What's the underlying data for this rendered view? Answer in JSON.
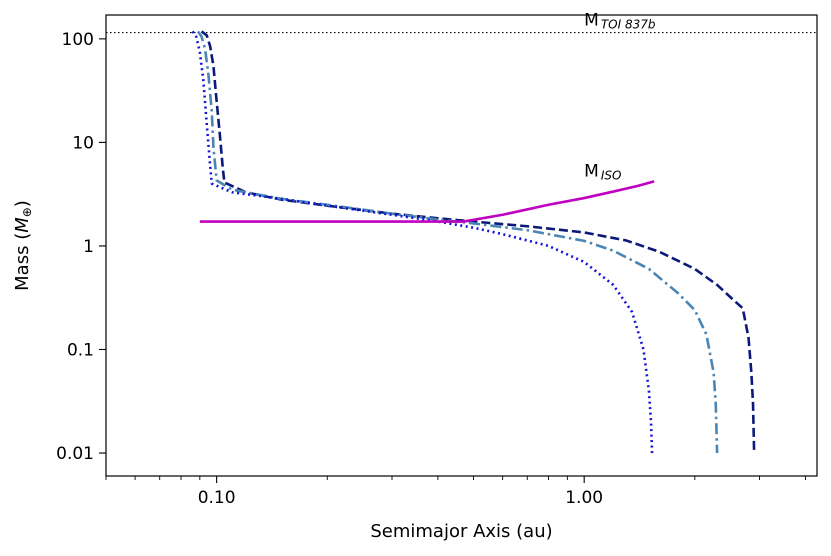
{
  "chart_data": {
    "type": "line",
    "xscale": "log",
    "yscale": "log",
    "xlabel": "Semimajor Axis (au)",
    "ylabel_main": "Mass (",
    "ylabel_symbol": "M",
    "ylabel_sub": "⊕",
    "ylabel_end": ")",
    "xlim": [
      0.05,
      4.3
    ],
    "ylim": [
      0.006,
      170
    ],
    "xticks": [
      {
        "value": 0.1,
        "label": "0.10"
      },
      {
        "value": 1.0,
        "label": "1.00"
      }
    ],
    "yticks": [
      {
        "value": 0.01,
        "label": "0.01"
      },
      {
        "value": 0.1,
        "label": "0.1"
      },
      {
        "value": 1,
        "label": "1"
      },
      {
        "value": 10,
        "label": "10"
      },
      {
        "value": 100,
        "label": "100"
      }
    ],
    "reference_lines": [
      {
        "name": "toi-837b-line",
        "y": 115,
        "x_range": [
          0.05,
          4.3
        ],
        "color": "#000000",
        "style": "dotted",
        "label_main": "M",
        "label_sub": "TOI 837b",
        "label_x": 1.0,
        "label_y": 135
      }
    ],
    "annotations": [
      {
        "name": "m-iso-label",
        "label_main": "M",
        "label_sub": "ISO",
        "x": 1.0,
        "y": 4.7
      }
    ],
    "series": [
      {
        "name": "dark-navy-dashed",
        "color": "#0b1a7a",
        "style": "dashed",
        "points": [
          [
            0.091,
            118
          ],
          [
            0.094,
            108
          ],
          [
            0.096,
            85
          ],
          [
            0.098,
            55
          ],
          [
            0.1,
            25
          ],
          [
            0.102,
            12
          ],
          [
            0.104,
            5.5
          ],
          [
            0.105,
            4.1
          ],
          [
            0.12,
            3.3
          ],
          [
            0.15,
            2.8
          ],
          [
            0.2,
            2.45
          ],
          [
            0.3,
            2.05
          ],
          [
            0.4,
            1.85
          ],
          [
            0.5,
            1.72
          ],
          [
            0.7,
            1.55
          ],
          [
            1.0,
            1.35
          ],
          [
            1.3,
            1.13
          ],
          [
            1.6,
            0.88
          ],
          [
            2.0,
            0.6
          ],
          [
            2.3,
            0.42
          ],
          [
            2.55,
            0.3
          ],
          [
            2.7,
            0.25
          ],
          [
            2.8,
            0.13
          ],
          [
            2.85,
            0.06
          ],
          [
            2.88,
            0.03
          ],
          [
            2.9,
            0.01
          ]
        ]
      },
      {
        "name": "steelblue-dashdot",
        "color": "#4a86b5",
        "style": "dashdot",
        "points": [
          [
            0.089,
            118
          ],
          [
            0.091,
            105
          ],
          [
            0.093,
            80
          ],
          [
            0.095,
            45
          ],
          [
            0.097,
            20
          ],
          [
            0.098,
            9
          ],
          [
            0.1,
            4.3
          ],
          [
            0.11,
            3.5
          ],
          [
            0.15,
            2.85
          ],
          [
            0.2,
            2.5
          ],
          [
            0.3,
            2.05
          ],
          [
            0.4,
            1.8
          ],
          [
            0.5,
            1.65
          ],
          [
            0.7,
            1.42
          ],
          [
            1.0,
            1.12
          ],
          [
            1.2,
            0.9
          ],
          [
            1.5,
            0.6
          ],
          [
            1.8,
            0.35
          ],
          [
            2.0,
            0.24
          ],
          [
            2.15,
            0.14
          ],
          [
            2.25,
            0.06
          ],
          [
            2.28,
            0.03
          ],
          [
            2.3,
            0.01
          ]
        ]
      },
      {
        "name": "blue-dotted",
        "color": "#1414d6",
        "style": "dotted",
        "points": [
          [
            0.086,
            118
          ],
          [
            0.088,
            105
          ],
          [
            0.09,
            75
          ],
          [
            0.092,
            40
          ],
          [
            0.094,
            15
          ],
          [
            0.096,
            6
          ],
          [
            0.097,
            4.0
          ],
          [
            0.11,
            3.3
          ],
          [
            0.15,
            2.85
          ],
          [
            0.2,
            2.45
          ],
          [
            0.3,
            2.0
          ],
          [
            0.4,
            1.72
          ],
          [
            0.5,
            1.5
          ],
          [
            0.6,
            1.3
          ],
          [
            0.8,
            1.0
          ],
          [
            1.0,
            0.7
          ],
          [
            1.2,
            0.42
          ],
          [
            1.35,
            0.23
          ],
          [
            1.45,
            0.1
          ],
          [
            1.5,
            0.04
          ],
          [
            1.52,
            0.02
          ],
          [
            1.53,
            0.01
          ]
        ]
      },
      {
        "name": "m-iso-line",
        "color": "#c000c0",
        "style": "solid",
        "points": [
          [
            0.09,
            1.72
          ],
          [
            0.2,
            1.72
          ],
          [
            0.35,
            1.72
          ],
          [
            0.47,
            1.72
          ],
          [
            0.6,
            2.0
          ],
          [
            0.8,
            2.5
          ],
          [
            1.0,
            2.9
          ],
          [
            1.2,
            3.35
          ],
          [
            1.4,
            3.8
          ],
          [
            1.55,
            4.2
          ]
        ]
      }
    ]
  }
}
